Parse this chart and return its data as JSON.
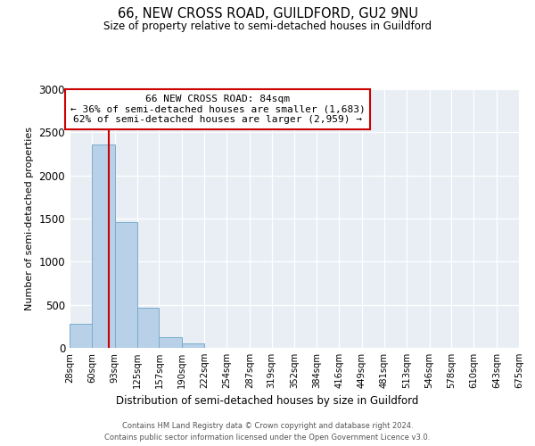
{
  "title": "66, NEW CROSS ROAD, GUILDFORD, GU2 9NU",
  "subtitle": "Size of property relative to semi-detached houses in Guildford",
  "xlabel": "Distribution of semi-detached houses by size in Guildford",
  "ylabel": "Number of semi-detached properties",
  "bar_labels": [
    "28sqm",
    "60sqm",
    "93sqm",
    "125sqm",
    "157sqm",
    "190sqm",
    "222sqm",
    "254sqm",
    "287sqm",
    "319sqm",
    "352sqm",
    "384sqm",
    "416sqm",
    "449sqm",
    "481sqm",
    "513sqm",
    "546sqm",
    "578sqm",
    "610sqm",
    "643sqm",
    "675sqm"
  ],
  "bar_values": [
    280,
    2360,
    1460,
    470,
    125,
    50,
    0,
    0,
    0,
    0,
    0,
    0,
    0,
    0,
    0,
    0,
    0,
    0,
    0,
    0,
    0
  ],
  "bar_color": "#b8d0e8",
  "bar_edgecolor": "#7aaccc",
  "ylim": [
    0,
    3000
  ],
  "yticks": [
    0,
    500,
    1000,
    1500,
    2000,
    2500,
    3000
  ],
  "property_size": 84,
  "property_label": "66 NEW CROSS ROAD: 84sqm",
  "smaller_pct": 36,
  "smaller_count": 1683,
  "larger_pct": 62,
  "larger_count": 2959,
  "annotation_box_facecolor": "#ffffff",
  "annotation_box_edgecolor": "#cc0000",
  "line_color": "#cc0000",
  "bg_color": "#e8eef4",
  "grid_color": "#ffffff",
  "footer1": "Contains HM Land Registry data © Crown copyright and database right 2024.",
  "footer2": "Contains public sector information licensed under the Open Government Licence v3.0.",
  "bin_edges": [
    28,
    60,
    93,
    125,
    157,
    190,
    222,
    254,
    287,
    319,
    352,
    384,
    416,
    449,
    481,
    513,
    546,
    578,
    610,
    643,
    675
  ]
}
